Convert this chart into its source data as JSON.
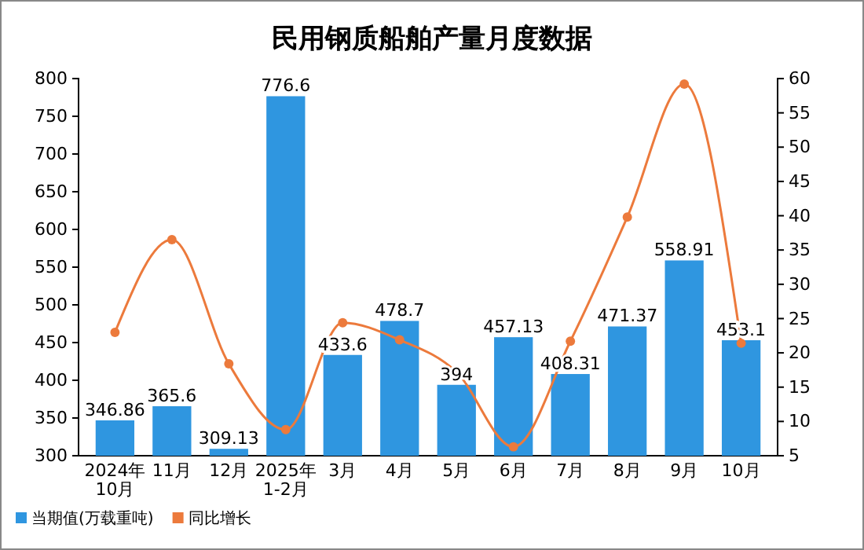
{
  "chart_data": {
    "type": "bar",
    "title": "民用钢质船舶产量月度数据",
    "categories": [
      "2024年\n10月",
      "11月",
      "12月",
      "2025年\n1-2月",
      "3月",
      "4月",
      "5月",
      "6月",
      "7月",
      "8月",
      "9月",
      "10月"
    ],
    "series": [
      {
        "name": "当期值(万载重吨)",
        "color": "#2f96e0",
        "values": [
          346.86,
          365.6,
          309.13,
          776.6,
          433.6,
          478.7,
          394,
          457.13,
          408.31,
          471.37,
          558.91,
          453.1
        ],
        "data_labels": true
      },
      {
        "name": "同比增长",
        "type": "line",
        "axis": "y2",
        "color": "#ec7a3c",
        "marker": "circle",
        "values": [
          23.0,
          36.5,
          18.4,
          8.8,
          24.4,
          21.9,
          17.2,
          6.3,
          21.7,
          39.8,
          59.2,
          21.4
        ]
      }
    ],
    "ylim": [
      300,
      800
    ],
    "yticks": [
      300,
      350,
      400,
      450,
      500,
      550,
      600,
      650,
      700,
      750,
      800
    ],
    "y2lim": [
      5,
      60
    ],
    "y2ticks": [
      5,
      10,
      15,
      20,
      25,
      30,
      35,
      40,
      45,
      50,
      55,
      60
    ],
    "legend": "bottom left",
    "grid": false
  }
}
